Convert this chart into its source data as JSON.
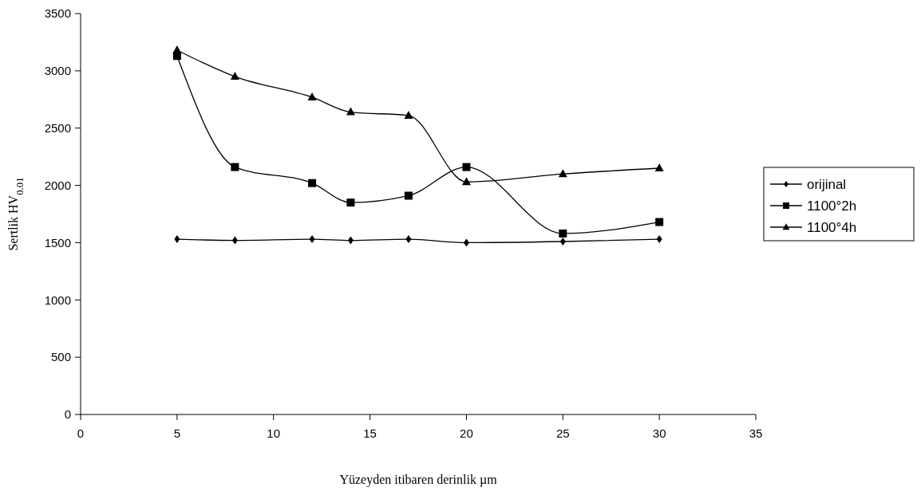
{
  "chart_data": {
    "type": "line",
    "xlabel": "Yüzeyden itibaren derinlik µm",
    "ylabel": "Sertlik HV$_{0.01}$",
    "x": [
      5,
      8,
      12,
      14,
      17,
      20,
      25,
      30
    ],
    "series": [
      {
        "name": "orijinal",
        "color": "#000000",
        "marker": "diamond",
        "values": [
          1530,
          1520,
          1530,
          1520,
          1530,
          1500,
          1510,
          1530
        ]
      },
      {
        "name": "1100°2h",
        "color": "#000000",
        "marker": "square",
        "values": [
          3130,
          2160,
          2020,
          1850,
          1910,
          2160,
          1580,
          1680
        ]
      },
      {
        "name": "1100°4h",
        "color": "#000000",
        "marker": "triangle",
        "values": [
          3180,
          2950,
          2770,
          2640,
          2610,
          2030,
          2100,
          2150
        ]
      }
    ],
    "xlim": [
      0,
      35
    ],
    "xticks": [
      0,
      5,
      10,
      15,
      20,
      25,
      30,
      35
    ],
    "ylim": [
      0,
      3500
    ],
    "yticks": [
      0,
      500,
      1000,
      1500,
      2000,
      2500,
      3000,
      3500
    ],
    "legend": "right",
    "grid": false
  }
}
